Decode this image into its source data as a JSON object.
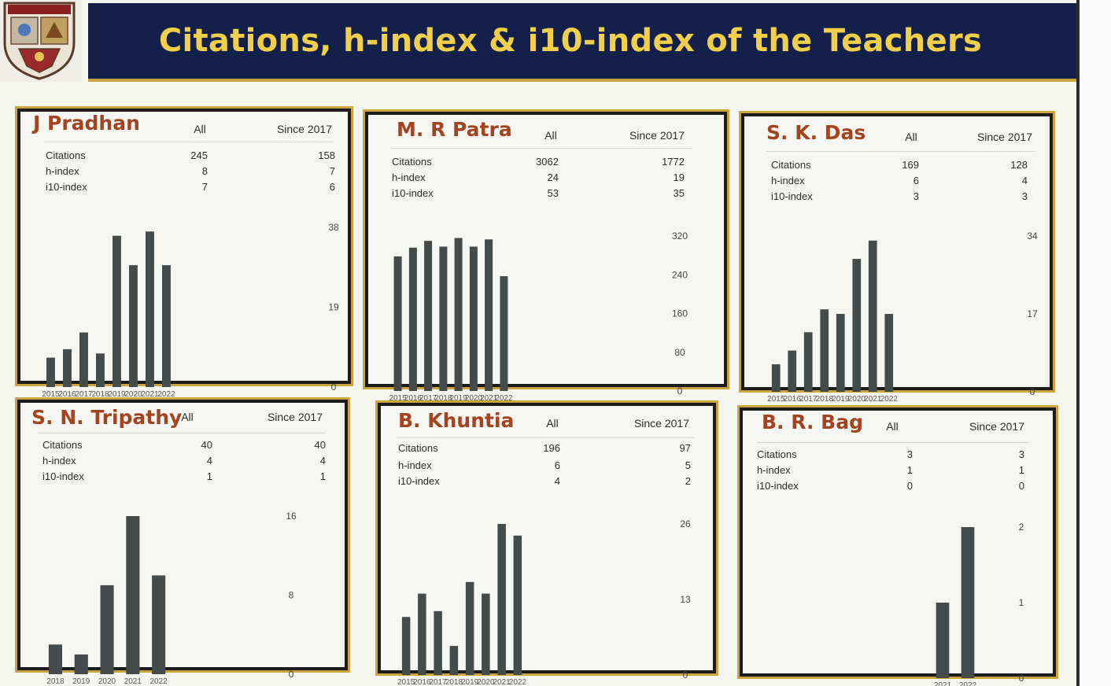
{
  "title": "Citations, h-index & i10-index of the Teachers",
  "colors": {
    "title_bg": "#13204a",
    "title_text": "#f2cf4a",
    "name_text": "#a3431f",
    "bar": "#454a4a",
    "frame": "#c9a43f"
  },
  "headers": {
    "all": "All",
    "since": "Since 2017"
  },
  "panels": [
    {
      "name": "J Pradhan",
      "stats": [
        {
          "label": "Citations",
          "all": "245",
          "since": "158"
        },
        {
          "label": "h-index",
          "all": "8",
          "since": "7"
        },
        {
          "label": "i10-index",
          "all": "7",
          "since": "6"
        }
      ]
    },
    {
      "name": "M. R Patra",
      "stats": [
        {
          "label": "Citations",
          "all": "3062",
          "since": "1772"
        },
        {
          "label": "h-index",
          "all": "24",
          "since": "19"
        },
        {
          "label": "i10-index",
          "all": "53",
          "since": "35"
        }
      ]
    },
    {
      "name": "S.  K. Das",
      "stats": [
        {
          "label": "Citations",
          "all": "169",
          "since": "128"
        },
        {
          "label": "h-index",
          "all": "6",
          "since": "4"
        },
        {
          "label": "i10-index",
          "all": "3",
          "since": "3"
        }
      ]
    },
    {
      "name": "S. N. Tripathy",
      "stats": [
        {
          "label": "Citations",
          "all": "40",
          "since": "40"
        },
        {
          "label": "h-index",
          "all": "4",
          "since": "4"
        },
        {
          "label": "i10-index",
          "all": "1",
          "since": "1"
        }
      ]
    },
    {
      "name": "B. Khuntia",
      "stats": [
        {
          "label": "Citations",
          "all": "196",
          "since": "97"
        },
        {
          "label": "h-index",
          "all": "6",
          "since": "5"
        },
        {
          "label": "i10-index",
          "all": "4",
          "since": "2"
        }
      ]
    },
    {
      "name": "B. R. Bag",
      "stats": [
        {
          "label": "Citations",
          "all": "3",
          "since": "3"
        },
        {
          "label": "h-index",
          "all": "1",
          "since": "1"
        },
        {
          "label": "i10-index",
          "all": "0",
          "since": "0"
        }
      ]
    }
  ],
  "chart_data": [
    {
      "type": "bar",
      "title": "",
      "categories": [
        "2015",
        "2016",
        "2017",
        "2018",
        "2019",
        "2020",
        "2021",
        "2022"
      ],
      "values": [
        7,
        9,
        13,
        8,
        36,
        29,
        37,
        29
      ],
      "yticks": [
        0,
        19,
        38
      ],
      "ylim": [
        0,
        38
      ],
      "yaxis_position": "right"
    },
    {
      "type": "bar",
      "title": "",
      "categories": [
        "2015",
        "2016",
        "2017",
        "2018",
        "2019",
        "2020",
        "2021",
        "2022"
      ],
      "values": [
        278,
        296,
        310,
        298,
        316,
        298,
        313,
        237
      ],
      "yticks": [
        0,
        80,
        160,
        240,
        320
      ],
      "ylim": [
        0,
        320
      ],
      "yaxis_position": "right"
    },
    {
      "type": "bar",
      "title": "",
      "categories": [
        "2015",
        "2016",
        "2017",
        "2018",
        "2019",
        "2020",
        "2021",
        "2022"
      ],
      "values": [
        6,
        9,
        13,
        18,
        17,
        29,
        33,
        17
      ],
      "yticks": [
        0,
        17,
        34
      ],
      "ylim": [
        0,
        34
      ],
      "yaxis_position": "right"
    },
    {
      "type": "bar",
      "title": "",
      "categories": [
        "2018",
        "2019",
        "2020",
        "2021",
        "2022"
      ],
      "values": [
        3,
        2,
        9,
        16,
        10
      ],
      "yticks": [
        0,
        8,
        16
      ],
      "ylim": [
        0,
        16
      ],
      "yaxis_position": "right"
    },
    {
      "type": "bar",
      "title": "",
      "categories": [
        "2015",
        "2016",
        "2017",
        "2018",
        "2019",
        "2020",
        "2021",
        "2022"
      ],
      "values": [
        10,
        14,
        11,
        5,
        16,
        14,
        26,
        24
      ],
      "yticks": [
        0,
        13,
        26
      ],
      "ylim": [
        0,
        26
      ],
      "yaxis_position": "right"
    },
    {
      "type": "bar",
      "title": "",
      "categories": [
        "2021",
        "2022"
      ],
      "values": [
        1,
        2
      ],
      "yticks": [
        0,
        1,
        2
      ],
      "ylim": [
        0,
        2
      ],
      "yaxis_position": "right"
    }
  ]
}
